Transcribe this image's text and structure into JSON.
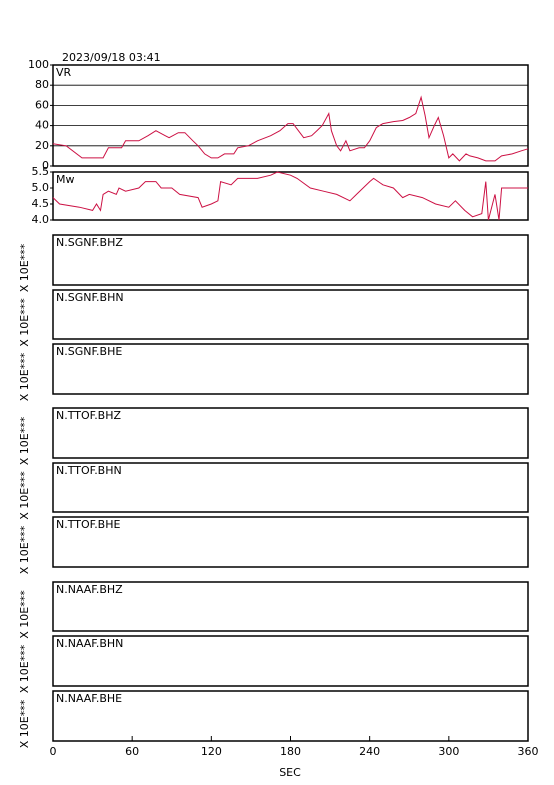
{
  "chart_data": {
    "type": "line",
    "title": "2023/09/18 03:41",
    "xlabel": "SEC",
    "xlim": [
      0,
      360
    ],
    "xticks": [
      0,
      60,
      120,
      180,
      240,
      300,
      360
    ],
    "color": "#cc1144",
    "panels": [
      {
        "label": "VR",
        "ylim": [
          0,
          100
        ],
        "yticks": [
          0,
          20,
          40,
          60,
          80,
          100
        ],
        "grid": true,
        "x": [
          0,
          10,
          22,
          38,
          42,
          52,
          55,
          65,
          72,
          78,
          85,
          88,
          95,
          100,
          106,
          110,
          115,
          120,
          125,
          130,
          137,
          140,
          148,
          155,
          165,
          172,
          178,
          182,
          186,
          190,
          196,
          200,
          204,
          209,
          211,
          215,
          218,
          222,
          225,
          232,
          236,
          240,
          245,
          250,
          258,
          265,
          270,
          275,
          279,
          282,
          285,
          289,
          292,
          296,
          300,
          303,
          308,
          313,
          316,
          322,
          328,
          335,
          340,
          348,
          355,
          360
        ],
        "values": [
          22,
          20,
          8,
          8,
          18,
          18,
          25,
          25,
          30,
          35,
          30,
          28,
          33,
          33,
          25,
          20,
          12,
          8,
          8,
          12,
          12,
          18,
          20,
          25,
          30,
          35,
          42,
          42,
          35,
          28,
          30,
          35,
          40,
          52,
          35,
          20,
          15,
          25,
          15,
          18,
          18,
          25,
          38,
          42,
          44,
          45,
          48,
          52,
          68,
          50,
          28,
          40,
          48,
          30,
          8,
          12,
          5,
          12,
          10,
          8,
          5,
          5,
          10,
          12,
          15,
          17
        ]
      },
      {
        "label": "Mw",
        "ylim": [
          4.0,
          5.5
        ],
        "yticks": [
          {
            "value": 4.0,
            "label": "4.0"
          },
          {
            "value": 4.5,
            "label": "4.5"
          },
          {
            "value": 5.0,
            "label": "5.0"
          },
          {
            "value": 5.5,
            "label": "5.5"
          }
        ],
        "grid": false,
        "x": [
          0,
          5,
          20,
          30,
          33,
          36,
          38,
          42,
          48,
          50,
          55,
          65,
          70,
          78,
          82,
          90,
          96,
          110,
          113,
          120,
          125,
          127,
          135,
          140,
          155,
          165,
          170,
          180,
          185,
          195,
          205,
          215,
          225,
          230,
          240,
          243,
          250,
          258,
          265,
          270,
          280,
          290,
          300,
          305,
          312,
          318,
          325,
          328,
          330,
          335,
          338,
          340,
          360
        ],
        "values": [
          4.7,
          4.5,
          4.4,
          4.3,
          4.5,
          4.3,
          4.8,
          4.9,
          4.8,
          5.0,
          4.9,
          5.0,
          5.2,
          5.2,
          5.0,
          5.0,
          4.8,
          4.7,
          4.4,
          4.5,
          4.6,
          5.2,
          5.1,
          5.3,
          5.3,
          5.4,
          5.5,
          5.4,
          5.3,
          5.0,
          4.9,
          4.8,
          4.6,
          4.8,
          5.2,
          5.3,
          5.1,
          5.0,
          4.7,
          4.8,
          4.7,
          4.5,
          4.4,
          4.6,
          4.3,
          4.1,
          4.2,
          5.2,
          4.0,
          4.8,
          4.0,
          5.0,
          5.0
        ]
      },
      {
        "label": "N.SGNF.BHZ",
        "scale_label": "X 10E***"
      },
      {
        "label": "N.SGNF.BHN",
        "scale_label": "X 10E***"
      },
      {
        "label": "N.SGNF.BHE",
        "scale_label": "X 10E***"
      },
      {
        "label": "N.TTOF.BHZ",
        "scale_label": "X 10E***"
      },
      {
        "label": "N.TTOF.BHN",
        "scale_label": "X 10E***"
      },
      {
        "label": "N.TTOF.BHE",
        "scale_label": "X 10E***"
      },
      {
        "label": "N.NAAF.BHZ",
        "scale_label": "X 10E***"
      },
      {
        "label": "N.NAAF.BHN",
        "scale_label": "X 10E***"
      },
      {
        "label": "N.NAAF.BHE",
        "scale_label": "X 10E***"
      }
    ]
  }
}
